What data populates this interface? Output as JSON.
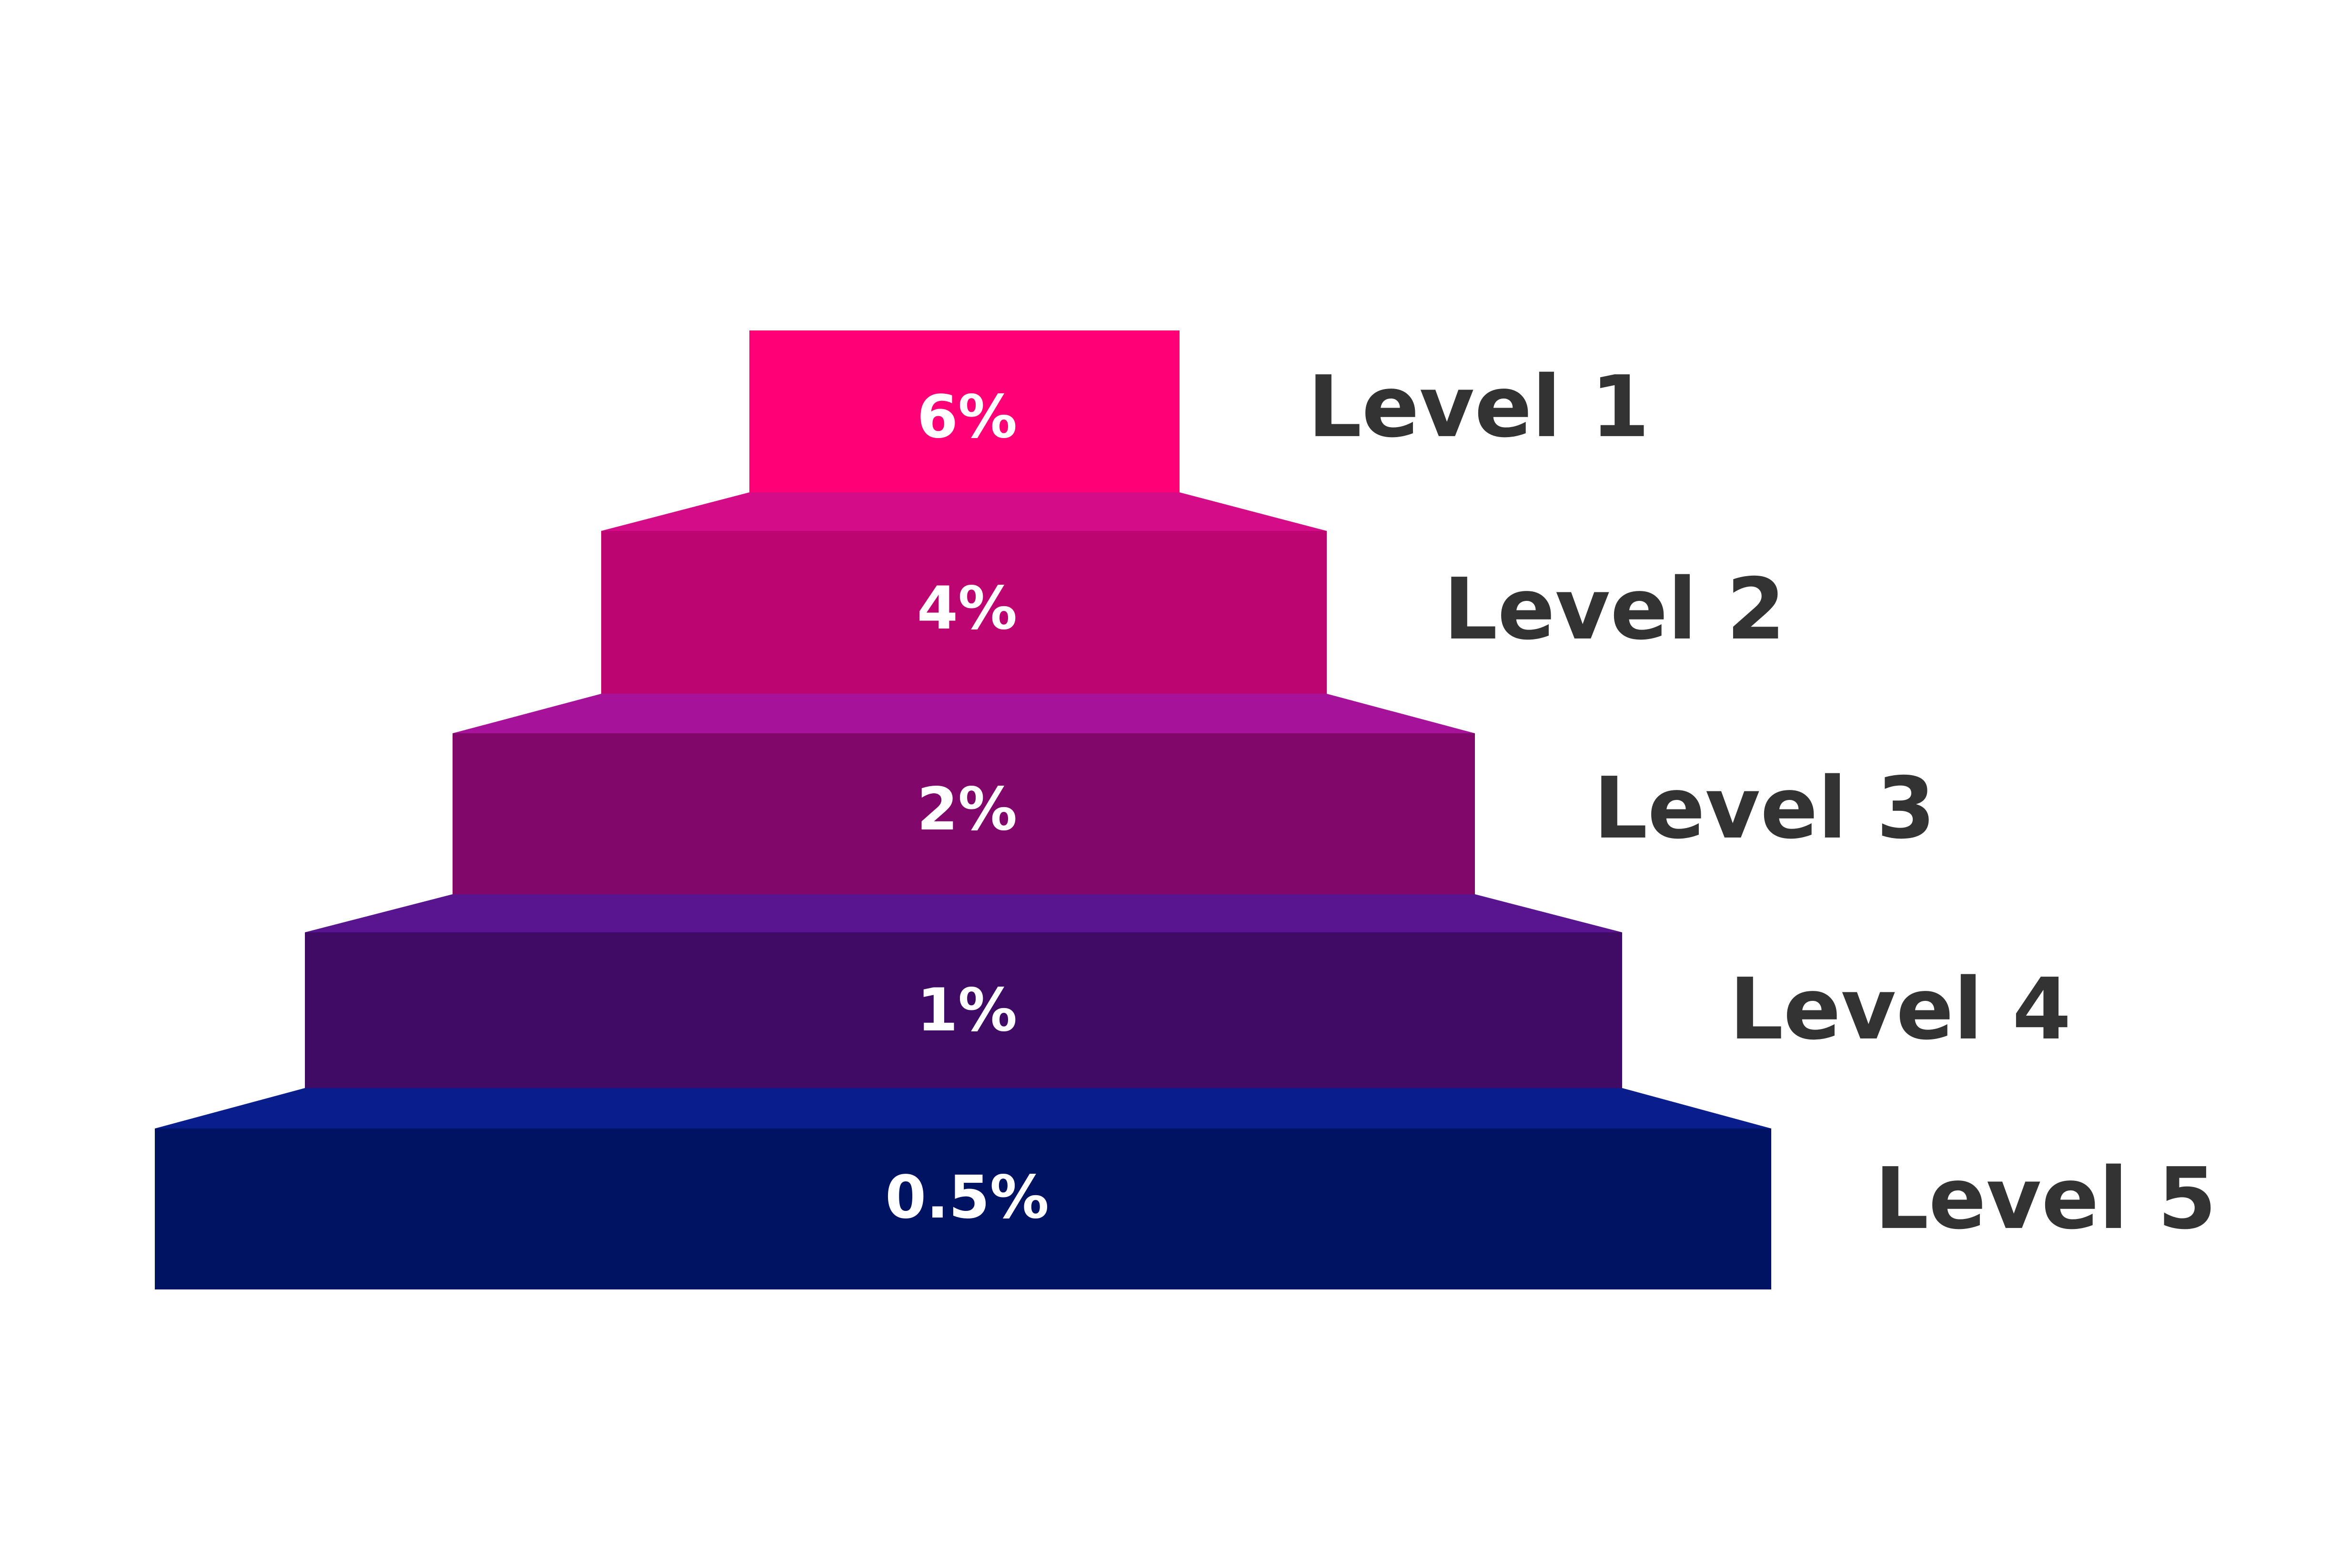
{
  "pyramid": {
    "tiers": [
      {
        "label": "Level 1",
        "value": "6%",
        "color": "#FF0077",
        "bevel_color": "#FF0077"
      },
      {
        "label": "Level 2",
        "value": "4%",
        "color": "#BD0571",
        "bevel_color": "#D40C87"
      },
      {
        "label": "Level 3",
        "value": "2%",
        "color": "#82076A",
        "bevel_color": "#A6139A"
      },
      {
        "label": "Level 4",
        "value": "1%",
        "color": "#3F0B64",
        "bevel_color": "#58158F"
      },
      {
        "label": "Level 5",
        "value": "0.5%",
        "color": "#001262",
        "bevel_color": "#091D8D"
      }
    ]
  }
}
